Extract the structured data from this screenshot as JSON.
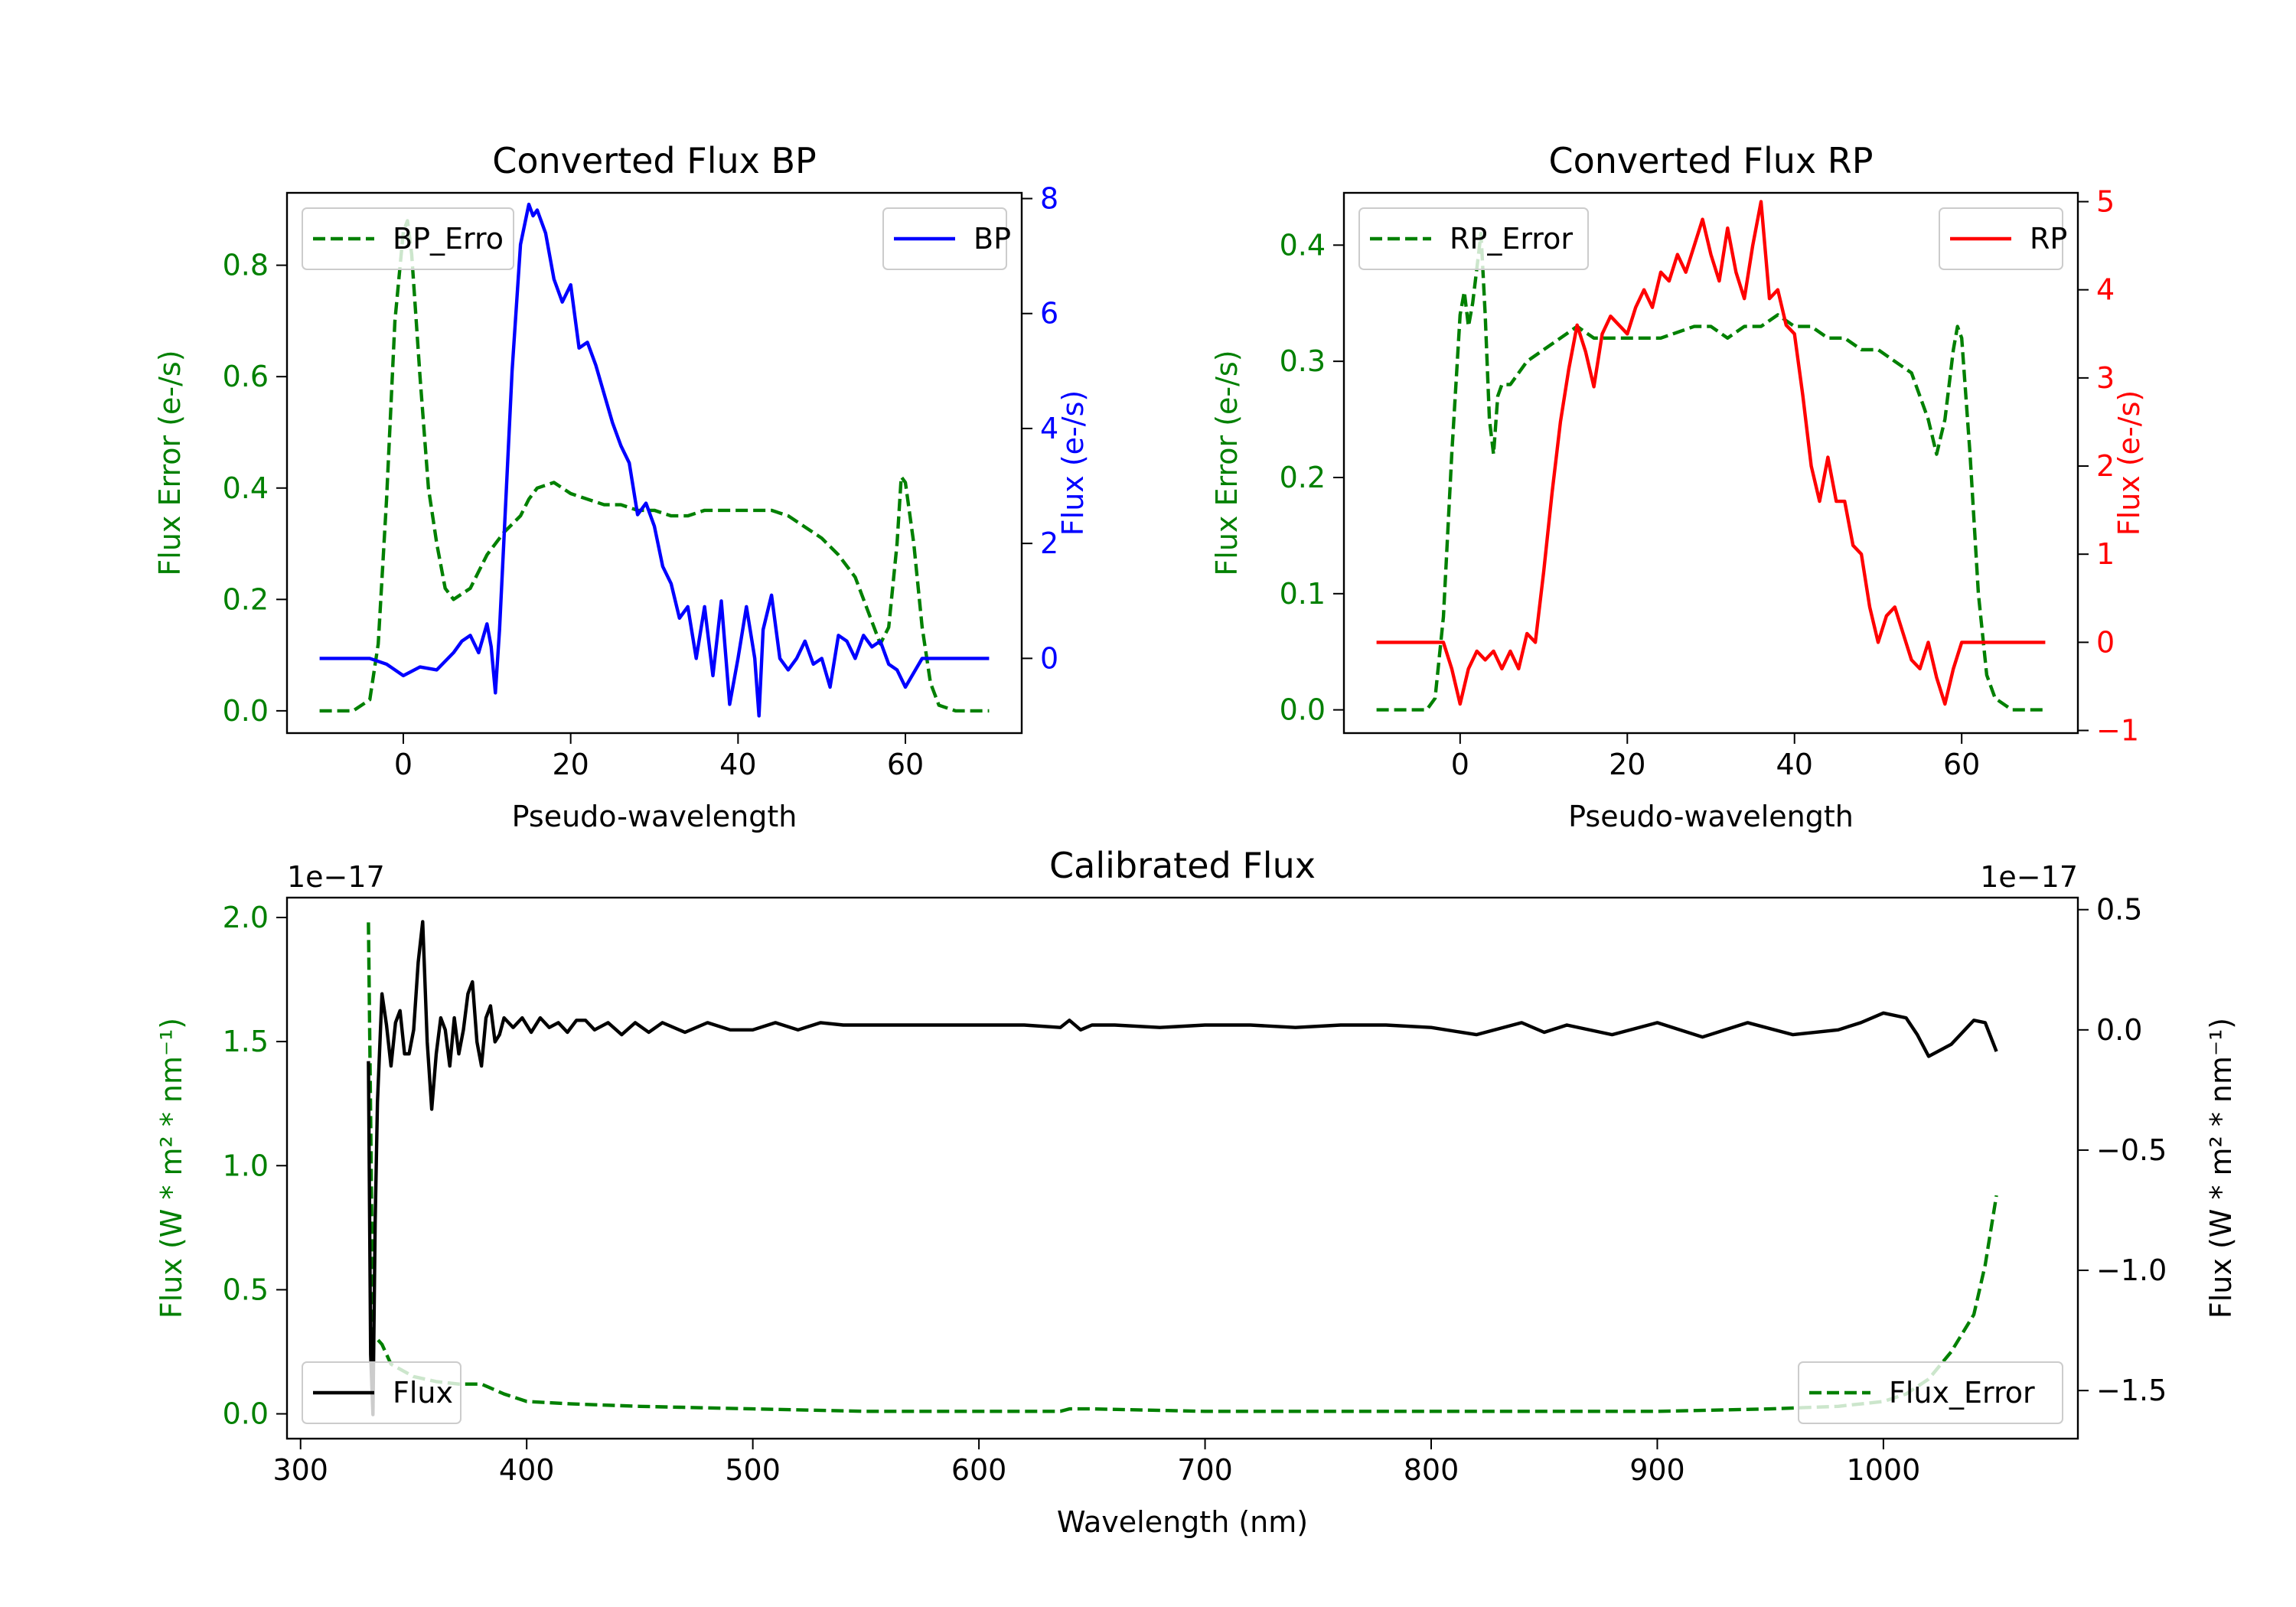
{
  "colors": {
    "bp": "#0000ff",
    "rp": "#ff0000",
    "error": "#008000",
    "flux": "#000000",
    "axis": "#000000"
  },
  "chart_data": [
    {
      "id": "bp",
      "type": "line",
      "title": "Converted Flux BP",
      "xlabel": "Pseudo-wavelength",
      "ylabel_left": "Flux Error (e-/s)",
      "ylabel_right": "Flux (e-/s)",
      "xlim": [
        -13.9,
        73.9
      ],
      "ylim_left": [
        -0.04,
        0.93
      ],
      "ylim_right": [
        -1.3,
        8.1
      ],
      "xticks": [
        0,
        20,
        40,
        60
      ],
      "yticks_left": [
        0.0,
        0.2,
        0.4,
        0.6,
        0.8
      ],
      "yticks_right": [
        0,
        2,
        4,
        6,
        8
      ],
      "yticklabels_left": [
        "0.0",
        "0.2",
        "0.4",
        "0.6",
        "0.8"
      ],
      "yticklabels_right": [
        "0",
        "2",
        "4",
        "6",
        "8"
      ],
      "error_series": {
        "name": "BP_Error",
        "legend_text": "BP_Erro",
        "legend": "top-left",
        "color": "#008000",
        "style": "dashed",
        "axis": "left",
        "x": [
          -10,
          -6,
          -4,
          -3,
          -2,
          -1,
          0,
          0.5,
          1,
          2,
          3,
          4,
          5,
          6,
          8,
          10,
          12,
          14,
          15,
          16,
          18,
          20,
          22,
          24,
          26,
          28,
          30,
          32,
          34,
          36,
          38,
          40,
          42,
          44,
          46,
          48,
          50,
          52,
          54,
          56,
          57,
          58,
          59,
          59.5,
          60,
          61,
          62,
          63,
          64,
          66,
          70
        ],
        "values": [
          0.0,
          0.0,
          0.02,
          0.12,
          0.38,
          0.7,
          0.86,
          0.88,
          0.82,
          0.6,
          0.4,
          0.3,
          0.22,
          0.2,
          0.22,
          0.28,
          0.32,
          0.35,
          0.38,
          0.4,
          0.41,
          0.39,
          0.38,
          0.37,
          0.37,
          0.36,
          0.36,
          0.35,
          0.35,
          0.36,
          0.36,
          0.36,
          0.36,
          0.36,
          0.35,
          0.33,
          0.31,
          0.28,
          0.24,
          0.16,
          0.12,
          0.15,
          0.3,
          0.42,
          0.41,
          0.3,
          0.15,
          0.05,
          0.01,
          0.0,
          0.0
        ]
      },
      "flux_series": {
        "name": "BP",
        "legend": "top-right",
        "color": "#0000ff",
        "style": "solid",
        "axis": "right",
        "x": [
          -10,
          -4,
          -2,
          0,
          2,
          4,
          6,
          7,
          8,
          9,
          10,
          10.5,
          11,
          11.5,
          12,
          13,
          14,
          15,
          15.5,
          16,
          17,
          18,
          19,
          20,
          21,
          22,
          23,
          24,
          25,
          26,
          27,
          28,
          29,
          30,
          31,
          32,
          33,
          34,
          35,
          36,
          37,
          38,
          39,
          40,
          41,
          42,
          42.5,
          43,
          44,
          45,
          46,
          47,
          48,
          49,
          50,
          51,
          52,
          53,
          54,
          55,
          56,
          57,
          58,
          59,
          60,
          62,
          64,
          66,
          70
        ],
        "values": [
          0,
          0,
          -0.1,
          -0.3,
          -0.15,
          -0.2,
          0.1,
          0.3,
          0.4,
          0.1,
          0.6,
          0.2,
          -0.6,
          0.5,
          2.0,
          5.0,
          7.2,
          7.9,
          7.7,
          7.8,
          7.4,
          6.6,
          6.2,
          6.5,
          5.4,
          5.5,
          5.1,
          4.6,
          4.1,
          3.7,
          3.4,
          2.5,
          2.7,
          2.3,
          1.6,
          1.3,
          0.7,
          0.9,
          0.0,
          0.9,
          -0.3,
          1.0,
          -0.8,
          0.0,
          0.9,
          0.0,
          -1.0,
          0.5,
          1.1,
          0.0,
          -0.2,
          0.0,
          0.3,
          -0.1,
          0.0,
          -0.5,
          0.4,
          0.3,
          0.0,
          0.4,
          0.2,
          0.3,
          -0.1,
          -0.2,
          -0.5,
          0.0,
          0.0,
          0.0,
          0.0
        ]
      }
    },
    {
      "id": "rp",
      "type": "line",
      "title": "Converted Flux RP",
      "xlabel": "Pseudo-wavelength",
      "ylabel_left": "Flux Error (e-/s)",
      "ylabel_right": "Flux (e-/s)",
      "xlim": [
        -13.9,
        73.9
      ],
      "ylim_left": [
        -0.02,
        0.445
      ],
      "ylim_right": [
        -1.03,
        5.1
      ],
      "xticks": [
        0,
        20,
        40,
        60
      ],
      "yticks_left": [
        0.0,
        0.1,
        0.2,
        0.3,
        0.4
      ],
      "yticks_right": [
        -1,
        0,
        1,
        2,
        3,
        4,
        5
      ],
      "yticklabels_left": [
        "0.0",
        "0.1",
        "0.2",
        "0.3",
        "0.4"
      ],
      "yticklabels_right": [
        "−1",
        "0",
        "1",
        "2",
        "3",
        "4",
        "5"
      ],
      "error_series": {
        "name": "RP_Error",
        "legend": "top-left",
        "color": "#008000",
        "style": "dashed",
        "axis": "left",
        "x": [
          -10,
          -4,
          -3,
          -2,
          -1,
          0,
          0.5,
          1,
          1.5,
          2,
          2.5,
          3,
          3.5,
          4,
          4.5,
          5,
          6,
          8,
          10,
          12,
          14,
          16,
          18,
          20,
          24,
          28,
          30,
          32,
          34,
          36,
          38,
          40,
          42,
          44,
          46,
          48,
          50,
          52,
          54,
          55,
          56,
          57,
          58,
          59,
          59.5,
          60,
          61,
          62,
          63,
          64,
          66,
          70
        ],
        "values": [
          0.0,
          0.0,
          0.01,
          0.08,
          0.22,
          0.34,
          0.36,
          0.33,
          0.35,
          0.38,
          0.41,
          0.34,
          0.25,
          0.22,
          0.27,
          0.28,
          0.28,
          0.3,
          0.31,
          0.32,
          0.33,
          0.32,
          0.32,
          0.32,
          0.32,
          0.33,
          0.33,
          0.32,
          0.33,
          0.33,
          0.34,
          0.33,
          0.33,
          0.32,
          0.32,
          0.31,
          0.31,
          0.3,
          0.29,
          0.27,
          0.25,
          0.22,
          0.25,
          0.31,
          0.33,
          0.32,
          0.22,
          0.1,
          0.03,
          0.01,
          0.0,
          0.0
        ]
      },
      "flux_series": {
        "name": "RP",
        "legend": "top-right",
        "color": "#ff0000",
        "style": "solid",
        "axis": "right",
        "x": [
          -10,
          -4,
          -2,
          -1,
          0,
          1,
          2,
          3,
          4,
          5,
          6,
          7,
          8,
          9,
          10,
          11,
          12,
          13,
          14,
          15,
          16,
          17,
          18,
          19,
          20,
          21,
          22,
          23,
          24,
          25,
          26,
          27,
          28,
          29,
          30,
          31,
          32,
          33,
          34,
          35,
          36,
          37,
          38,
          39,
          40,
          41,
          42,
          43,
          44,
          45,
          46,
          47,
          48,
          49,
          50,
          51,
          52,
          53,
          54,
          55,
          56,
          57,
          58,
          59,
          60,
          62,
          64,
          70
        ],
        "values": [
          0,
          0,
          0,
          -0.3,
          -0.7,
          -0.3,
          -0.1,
          -0.2,
          -0.1,
          -0.3,
          -0.1,
          -0.3,
          0.1,
          0.0,
          0.8,
          1.7,
          2.5,
          3.1,
          3.6,
          3.3,
          2.9,
          3.5,
          3.7,
          3.6,
          3.5,
          3.8,
          4.0,
          3.8,
          4.2,
          4.1,
          4.4,
          4.2,
          4.5,
          4.8,
          4.4,
          4.1,
          4.7,
          4.2,
          3.9,
          4.5,
          5.0,
          3.9,
          4.0,
          3.6,
          3.5,
          2.8,
          2.0,
          1.6,
          2.1,
          1.6,
          1.6,
          1.1,
          1.0,
          0.4,
          0.0,
          0.3,
          0.4,
          0.1,
          -0.2,
          -0.3,
          0.0,
          -0.4,
          -0.7,
          -0.3,
          0.0,
          0.0,
          0.0,
          0.0
        ]
      }
    },
    {
      "id": "cal",
      "type": "line",
      "title": "Calibrated Flux",
      "xlabel": "Wavelength (nm)",
      "ylabel_left": "Flux (W * m² * nm⁻¹)",
      "ylabel_right": "Flux (W * m² * nm⁻¹)",
      "offset_left": "1e−17",
      "offset_right": "1e−17",
      "xlim": [
        294,
        1086
      ],
      "ylim_left": [
        -0.1,
        2.08
      ],
      "ylim_right": [
        -1.7,
        0.55
      ],
      "xticks": [
        300,
        400,
        500,
        600,
        700,
        800,
        900,
        1000
      ],
      "yticks_left": [
        0.0,
        0.5,
        1.0,
        1.5,
        2.0
      ],
      "yticks_right": [
        -1.5,
        -1.0,
        -0.5,
        0.0,
        0.5
      ],
      "yticklabels_left": [
        "0.0",
        "0.5",
        "1.0",
        "1.5",
        "2.0"
      ],
      "yticklabels_right": [
        "−1.5",
        "−1.0",
        "−0.5",
        "0.0",
        "0.5"
      ],
      "flux_series": {
        "name": "Flux",
        "legend": "bottom-left",
        "color": "#000000",
        "style": "solid",
        "axis": "right",
        "x": [
          330,
          331,
          332,
          333,
          334,
          336,
          338,
          340,
          342,
          344,
          346,
          348,
          350,
          352,
          354,
          356,
          358,
          360,
          362,
          364,
          366,
          368,
          370,
          372,
          374,
          376,
          378,
          380,
          382,
          384,
          386,
          388,
          390,
          394,
          398,
          402,
          406,
          410,
          414,
          418,
          422,
          426,
          430,
          436,
          442,
          448,
          454,
          460,
          470,
          480,
          490,
          500,
          510,
          520,
          530,
          540,
          560,
          580,
          600,
          620,
          636,
          640,
          645,
          650,
          660,
          680,
          700,
          720,
          740,
          760,
          780,
          800,
          820,
          840,
          850,
          860,
          880,
          900,
          920,
          940,
          960,
          980,
          990,
          1000,
          1010,
          1015,
          1020,
          1030,
          1040,
          1045,
          1050
        ],
        "values": [
          -0.13,
          -1.35,
          -1.6,
          -0.8,
          -0.3,
          0.15,
          0.02,
          -0.15,
          0.03,
          0.08,
          -0.1,
          -0.1,
          0.0,
          0.28,
          0.45,
          -0.05,
          -0.33,
          -0.1,
          0.05,
          0.0,
          -0.15,
          0.05,
          -0.1,
          0.0,
          0.15,
          0.2,
          -0.05,
          -0.15,
          0.05,
          0.1,
          -0.05,
          -0.02,
          0.05,
          0.01,
          0.05,
          -0.01,
          0.05,
          0.01,
          0.03,
          -0.01,
          0.04,
          0.04,
          0.0,
          0.03,
          -0.02,
          0.03,
          -0.01,
          0.03,
          -0.01,
          0.03,
          0.0,
          0.0,
          0.03,
          0.0,
          0.03,
          0.02,
          0.02,
          0.02,
          0.02,
          0.02,
          0.01,
          0.04,
          0.0,
          0.02,
          0.02,
          0.01,
          0.02,
          0.02,
          0.01,
          0.02,
          0.02,
          0.01,
          -0.02,
          0.03,
          -0.01,
          0.02,
          -0.02,
          0.03,
          -0.03,
          0.03,
          -0.02,
          0.0,
          0.03,
          0.07,
          0.05,
          -0.02,
          -0.11,
          -0.06,
          0.04,
          0.03,
          -0.09
        ]
      },
      "error_series": {
        "name": "Flux_Error",
        "legend": "bottom-right",
        "color": "#008000",
        "style": "dashed",
        "axis": "left",
        "x": [
          330,
          331,
          332,
          334,
          336,
          340,
          350,
          360,
          370,
          380,
          390,
          400,
          420,
          450,
          500,
          550,
          600,
          636,
          640,
          650,
          700,
          800,
          900,
          950,
          980,
          1000,
          1010,
          1020,
          1030,
          1040,
          1045,
          1050
        ],
        "values": [
          1.98,
          1.2,
          0.3,
          0.3,
          0.28,
          0.2,
          0.15,
          0.13,
          0.12,
          0.12,
          0.08,
          0.05,
          0.04,
          0.03,
          0.02,
          0.01,
          0.01,
          0.01,
          0.02,
          0.02,
          0.01,
          0.01,
          0.01,
          0.02,
          0.03,
          0.05,
          0.08,
          0.14,
          0.25,
          0.4,
          0.6,
          0.88
        ]
      }
    }
  ]
}
